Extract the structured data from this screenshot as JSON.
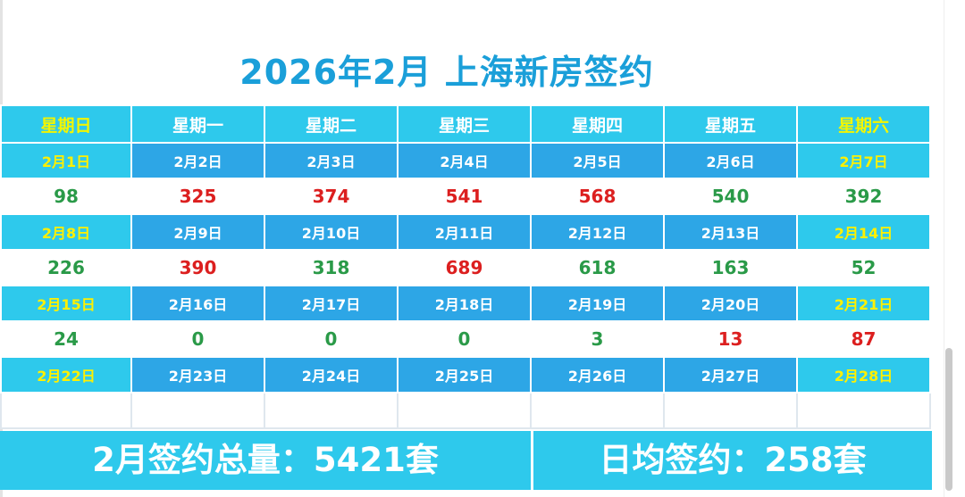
{
  "title": "2026年2月 上海新房签约",
  "weekdays": [
    "星期日",
    "星期一",
    "星期二",
    "星期三",
    "星期四",
    "星期五",
    "星期六"
  ],
  "weeks": [
    {
      "dates": [
        "2月1日",
        "2月2日",
        "2月3日",
        "2月4日",
        "2月5日",
        "2月6日",
        "2月7日"
      ],
      "values": [
        "98",
        "325",
        "374",
        "541",
        "568",
        "540",
        "392"
      ]
    },
    {
      "dates": [
        "2月8日",
        "2月9日",
        "2月10日",
        "2月11日",
        "2月12日",
        "2月13日",
        "2月14日"
      ],
      "values": [
        "226",
        "390",
        "318",
        "689",
        "618",
        "163",
        "52"
      ]
    },
    {
      "dates": [
        "2月15日",
        "2月16日",
        "2月17日",
        "2月18日",
        "2月19日",
        "2月20日",
        "2月21日"
      ],
      "values": [
        "24",
        "0",
        "0",
        "0",
        "3",
        "13",
        "87"
      ]
    },
    {
      "dates": [
        "2月22日",
        "2月23日",
        "2月24日",
        "2月25日",
        "2月26日",
        "2月27日",
        "2月28日"
      ]
    }
  ],
  "summary": {
    "total": "2月签约总量：5421套",
    "daily_avg": "日均签约：258套"
  },
  "colors": {
    "header_bg": "#2ec9ec",
    "date_bg": "#2da6e6",
    "weekend_text": "#fff000",
    "up_value": "#dc1f1f",
    "down_value": "#2a9a48",
    "title": "#1a9fd9"
  }
}
